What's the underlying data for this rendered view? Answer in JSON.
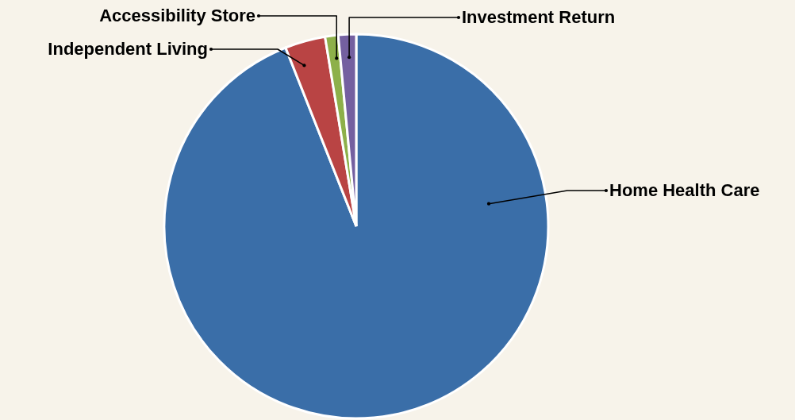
{
  "chart_data": {
    "type": "pie",
    "categories": [
      "Home Health Care",
      "Independent Living",
      "Accessibility Store",
      "Investment Return"
    ],
    "values": [
      94,
      3.4,
      1.1,
      1.5
    ],
    "colors": [
      "#3a6ea8",
      "#b94444",
      "#8db04a",
      "#7460a0"
    ]
  }
}
